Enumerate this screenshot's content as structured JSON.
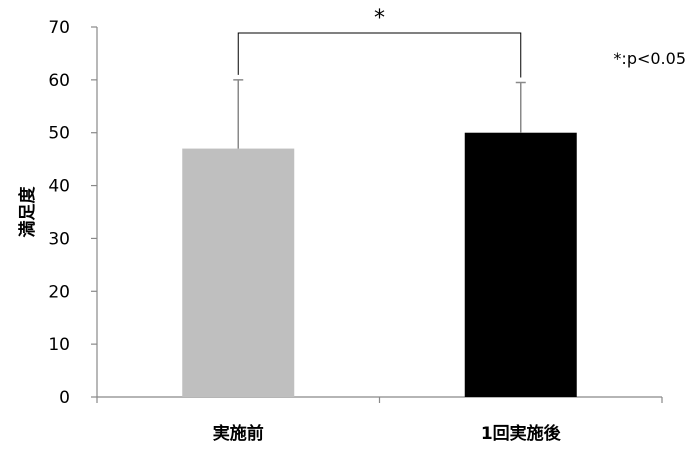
{
  "chart_data": {
    "type": "bar",
    "categories": [
      "実施前",
      "1回実施後"
    ],
    "values": [
      47,
      50
    ],
    "error_upper": [
      60,
      59.5
    ],
    "colors": [
      "#bfbfbf",
      "#000000"
    ],
    "xlabel": "",
    "ylabel": "満足度",
    "ylim": [
      0,
      70
    ],
    "yticks": [
      0,
      10,
      20,
      30,
      40,
      50,
      60,
      70
    ],
    "grid": false,
    "significance": {
      "between": [
        0,
        1
      ],
      "marker": "*"
    },
    "annotation": "*:p<0.05"
  }
}
